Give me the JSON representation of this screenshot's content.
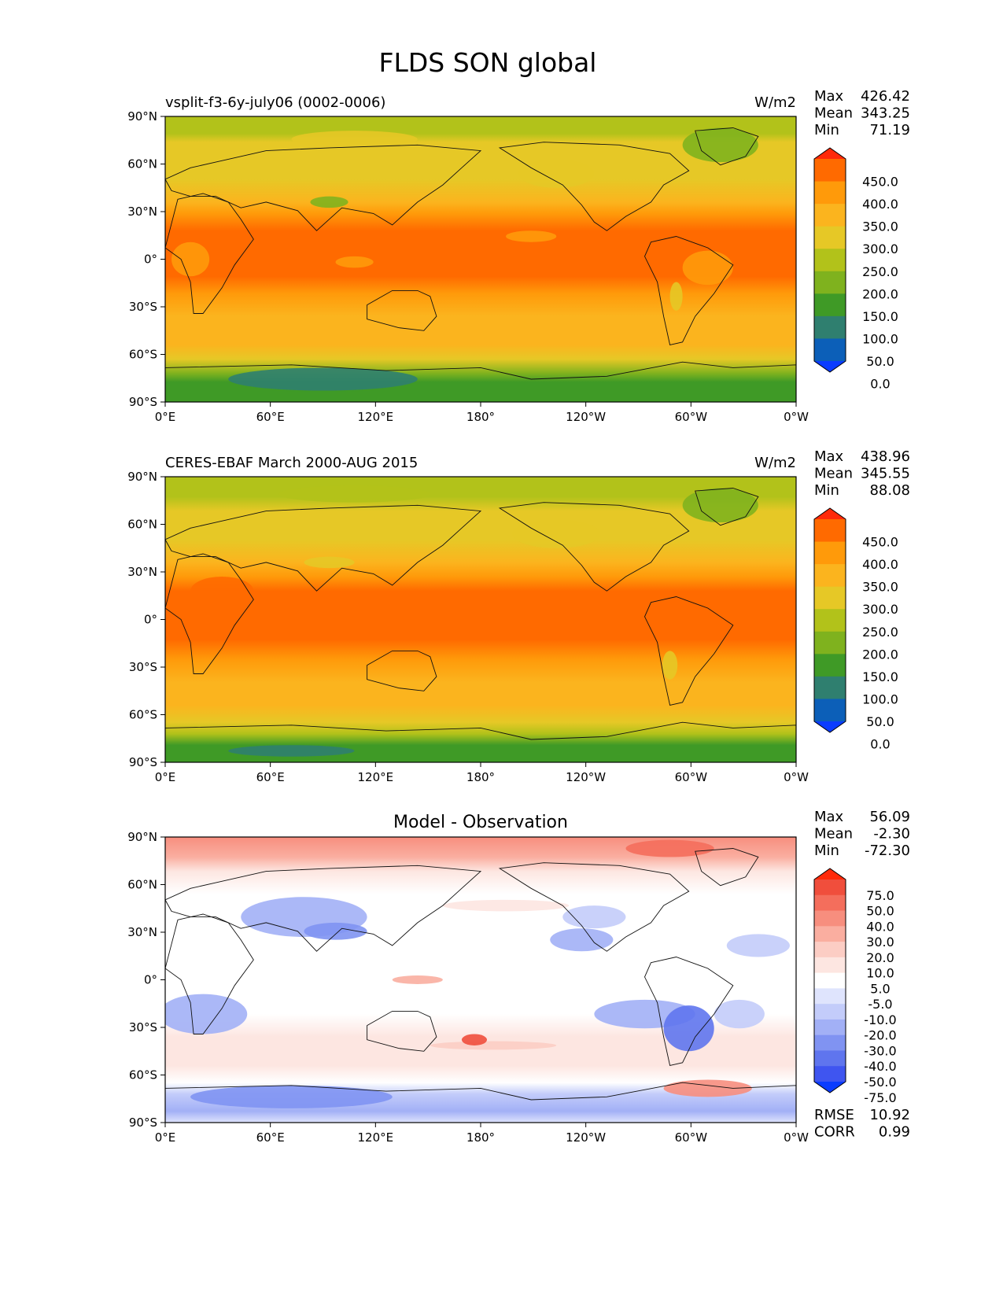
{
  "figure": {
    "suptitle": "FLDS SON global"
  },
  "chart_data": [
    {
      "type": "heatmap",
      "title_left": "vsplit-f3-6y-july06 (0002-0006)",
      "title_right": "W/m2",
      "x_ticks": [
        "0°E",
        "60°E",
        "120°E",
        "180°",
        "120°W",
        "60°W",
        "0°W"
      ],
      "y_ticks": [
        "90°N",
        "60°N",
        "30°N",
        "0°",
        "30°S",
        "60°S",
        "90°S"
      ],
      "stats": [
        {
          "label": "Max",
          "value": "426.42"
        },
        {
          "label": "Mean",
          "value": "343.25"
        },
        {
          "label": "Min",
          "value": "71.19"
        }
      ],
      "colorbar": {
        "labels": [
          "450.0",
          "400.0",
          "350.0",
          "300.0",
          "250.0",
          "200.0",
          "150.0",
          "100.0",
          "50.0",
          "0.0"
        ],
        "colors": [
          "#ff2a0a",
          "#ff6a00",
          "#ff9a0a",
          "#fbb41e",
          "#e6c826",
          "#b2c21a",
          "#7fb21e",
          "#3f9a26",
          "#2f7f6f",
          "#0c5fb8",
          "#0a3cff"
        ]
      },
      "field": "model"
    },
    {
      "type": "heatmap",
      "title_left": "CERES-EBAF March 2000-AUG 2015",
      "title_right": "W/m2",
      "x_ticks": [
        "0°E",
        "60°E",
        "120°E",
        "180°",
        "120°W",
        "60°W",
        "0°W"
      ],
      "y_ticks": [
        "90°N",
        "60°N",
        "30°N",
        "0°",
        "30°S",
        "60°S",
        "90°S"
      ],
      "stats": [
        {
          "label": "Max",
          "value": "438.96"
        },
        {
          "label": "Mean",
          "value": "345.55"
        },
        {
          "label": "Min",
          "value": "88.08"
        }
      ],
      "colorbar": {
        "labels": [
          "450.0",
          "400.0",
          "350.0",
          "300.0",
          "250.0",
          "200.0",
          "150.0",
          "100.0",
          "50.0",
          "0.0"
        ],
        "colors": [
          "#ff2a0a",
          "#ff6a00",
          "#ff9a0a",
          "#fbb41e",
          "#e6c826",
          "#b2c21a",
          "#7fb21e",
          "#3f9a26",
          "#2f7f6f",
          "#0c5fb8",
          "#0a3cff"
        ]
      },
      "field": "obs"
    },
    {
      "type": "heatmap",
      "title_center": "Model - Observation",
      "x_ticks": [
        "0°E",
        "60°E",
        "120°E",
        "180°",
        "120°W",
        "60°W",
        "0°W"
      ],
      "y_ticks": [
        "90°N",
        "60°N",
        "30°N",
        "0°",
        "30°S",
        "60°S",
        "90°S"
      ],
      "stats": [
        {
          "label": "Max",
          "value": "56.09"
        },
        {
          "label": "Mean",
          "value": "-2.30"
        },
        {
          "label": "Min",
          "value": "-72.30"
        }
      ],
      "extra_stats": [
        {
          "label": "RMSE",
          "value": "10.92"
        },
        {
          "label": "CORR",
          "value": "0.99"
        }
      ],
      "colorbar": {
        "labels": [
          "75.0",
          "50.0",
          "40.0",
          "30.0",
          "20.0",
          "10.0",
          "5.0",
          "-5.0",
          "-10.0",
          "-20.0",
          "-30.0",
          "-40.0",
          "-50.0",
          "-75.0"
        ],
        "colors": [
          "#ff2a0a",
          "#f04e3c",
          "#f46e5c",
          "#f78e7e",
          "#faaea0",
          "#fccdc4",
          "#fde6e1",
          "#ffffff",
          "#dfe4fd",
          "#c3ccfa",
          "#a2b0f6",
          "#8093f2",
          "#5f75ee",
          "#3f55f0",
          "#0a3cff"
        ]
      },
      "field": "diff"
    }
  ]
}
